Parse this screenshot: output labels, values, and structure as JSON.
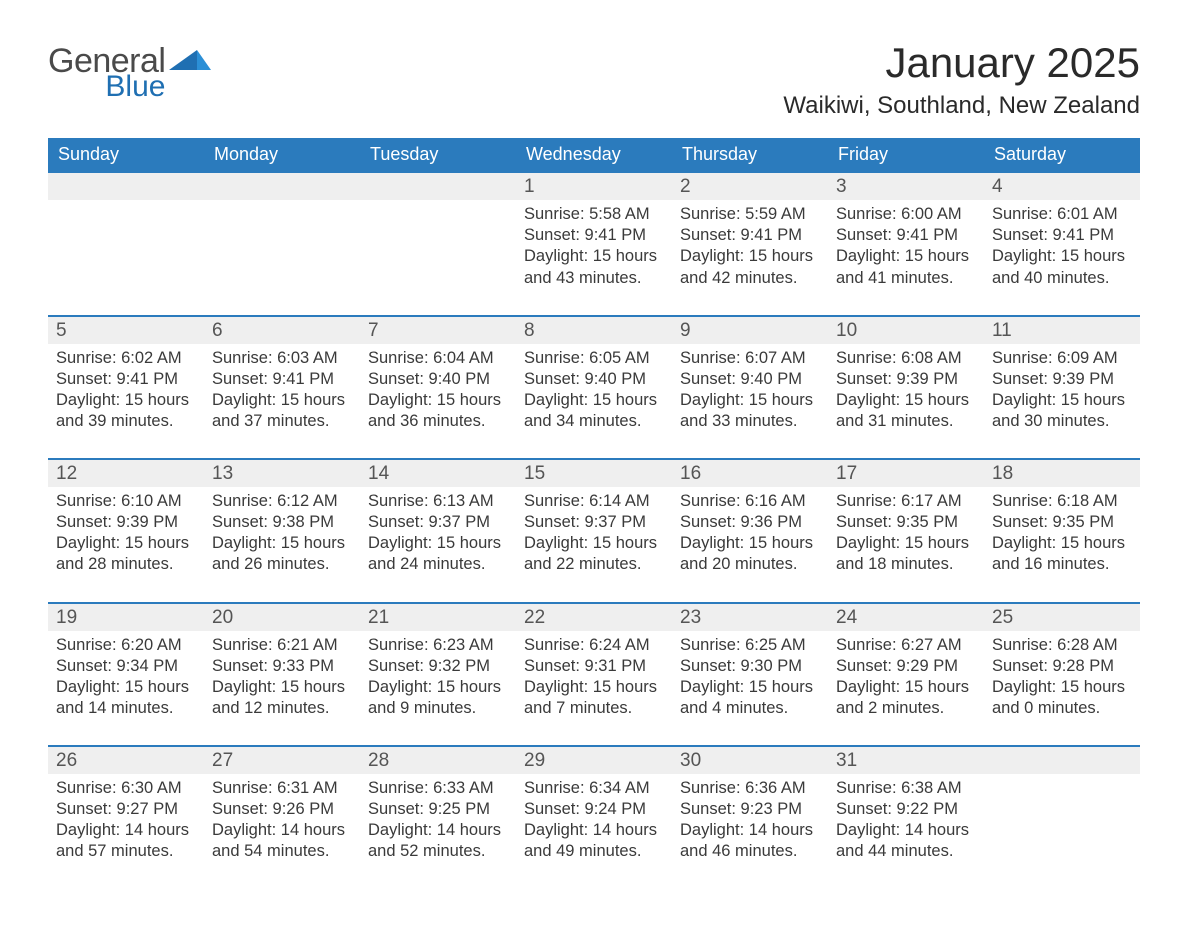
{
  "logo": {
    "general": "General",
    "blue": "Blue"
  },
  "title": "January 2025",
  "location": "Waikiwi, Southland, New Zealand",
  "colors": {
    "header_bg": "#2b7bbd",
    "header_text": "#ffffff",
    "date_bar_bg": "#efefef",
    "date_bar_border": "#2b7bbd",
    "body_text": "#3a3a3a",
    "logo_blue": "#1f6fb2",
    "logo_gray": "#4a4a4a",
    "page_bg": "#ffffff"
  },
  "typography": {
    "title_fontsize": 42,
    "location_fontsize": 24,
    "dow_fontsize": 18,
    "date_fontsize": 19,
    "body_fontsize": 16.5,
    "font_family": "Helvetica Neue, Arial, sans-serif"
  },
  "days_of_week": [
    "Sunday",
    "Monday",
    "Tuesday",
    "Wednesday",
    "Thursday",
    "Friday",
    "Saturday"
  ],
  "weeks": [
    [
      {
        "date": "",
        "sunrise": "",
        "sunset": "",
        "daylight": ""
      },
      {
        "date": "",
        "sunrise": "",
        "sunset": "",
        "daylight": ""
      },
      {
        "date": "",
        "sunrise": "",
        "sunset": "",
        "daylight": ""
      },
      {
        "date": "1",
        "sunrise": "Sunrise: 5:58 AM",
        "sunset": "Sunset: 9:41 PM",
        "daylight": "Daylight: 15 hours and 43 minutes."
      },
      {
        "date": "2",
        "sunrise": "Sunrise: 5:59 AM",
        "sunset": "Sunset: 9:41 PM",
        "daylight": "Daylight: 15 hours and 42 minutes."
      },
      {
        "date": "3",
        "sunrise": "Sunrise: 6:00 AM",
        "sunset": "Sunset: 9:41 PM",
        "daylight": "Daylight: 15 hours and 41 minutes."
      },
      {
        "date": "4",
        "sunrise": "Sunrise: 6:01 AM",
        "sunset": "Sunset: 9:41 PM",
        "daylight": "Daylight: 15 hours and 40 minutes."
      }
    ],
    [
      {
        "date": "5",
        "sunrise": "Sunrise: 6:02 AM",
        "sunset": "Sunset: 9:41 PM",
        "daylight": "Daylight: 15 hours and 39 minutes."
      },
      {
        "date": "6",
        "sunrise": "Sunrise: 6:03 AM",
        "sunset": "Sunset: 9:41 PM",
        "daylight": "Daylight: 15 hours and 37 minutes."
      },
      {
        "date": "7",
        "sunrise": "Sunrise: 6:04 AM",
        "sunset": "Sunset: 9:40 PM",
        "daylight": "Daylight: 15 hours and 36 minutes."
      },
      {
        "date": "8",
        "sunrise": "Sunrise: 6:05 AM",
        "sunset": "Sunset: 9:40 PM",
        "daylight": "Daylight: 15 hours and 34 minutes."
      },
      {
        "date": "9",
        "sunrise": "Sunrise: 6:07 AM",
        "sunset": "Sunset: 9:40 PM",
        "daylight": "Daylight: 15 hours and 33 minutes."
      },
      {
        "date": "10",
        "sunrise": "Sunrise: 6:08 AM",
        "sunset": "Sunset: 9:39 PM",
        "daylight": "Daylight: 15 hours and 31 minutes."
      },
      {
        "date": "11",
        "sunrise": "Sunrise: 6:09 AM",
        "sunset": "Sunset: 9:39 PM",
        "daylight": "Daylight: 15 hours and 30 minutes."
      }
    ],
    [
      {
        "date": "12",
        "sunrise": "Sunrise: 6:10 AM",
        "sunset": "Sunset: 9:39 PM",
        "daylight": "Daylight: 15 hours and 28 minutes."
      },
      {
        "date": "13",
        "sunrise": "Sunrise: 6:12 AM",
        "sunset": "Sunset: 9:38 PM",
        "daylight": "Daylight: 15 hours and 26 minutes."
      },
      {
        "date": "14",
        "sunrise": "Sunrise: 6:13 AM",
        "sunset": "Sunset: 9:37 PM",
        "daylight": "Daylight: 15 hours and 24 minutes."
      },
      {
        "date": "15",
        "sunrise": "Sunrise: 6:14 AM",
        "sunset": "Sunset: 9:37 PM",
        "daylight": "Daylight: 15 hours and 22 minutes."
      },
      {
        "date": "16",
        "sunrise": "Sunrise: 6:16 AM",
        "sunset": "Sunset: 9:36 PM",
        "daylight": "Daylight: 15 hours and 20 minutes."
      },
      {
        "date": "17",
        "sunrise": "Sunrise: 6:17 AM",
        "sunset": "Sunset: 9:35 PM",
        "daylight": "Daylight: 15 hours and 18 minutes."
      },
      {
        "date": "18",
        "sunrise": "Sunrise: 6:18 AM",
        "sunset": "Sunset: 9:35 PM",
        "daylight": "Daylight: 15 hours and 16 minutes."
      }
    ],
    [
      {
        "date": "19",
        "sunrise": "Sunrise: 6:20 AM",
        "sunset": "Sunset: 9:34 PM",
        "daylight": "Daylight: 15 hours and 14 minutes."
      },
      {
        "date": "20",
        "sunrise": "Sunrise: 6:21 AM",
        "sunset": "Sunset: 9:33 PM",
        "daylight": "Daylight: 15 hours and 12 minutes."
      },
      {
        "date": "21",
        "sunrise": "Sunrise: 6:23 AM",
        "sunset": "Sunset: 9:32 PM",
        "daylight": "Daylight: 15 hours and 9 minutes."
      },
      {
        "date": "22",
        "sunrise": "Sunrise: 6:24 AM",
        "sunset": "Sunset: 9:31 PM",
        "daylight": "Daylight: 15 hours and 7 minutes."
      },
      {
        "date": "23",
        "sunrise": "Sunrise: 6:25 AM",
        "sunset": "Sunset: 9:30 PM",
        "daylight": "Daylight: 15 hours and 4 minutes."
      },
      {
        "date": "24",
        "sunrise": "Sunrise: 6:27 AM",
        "sunset": "Sunset: 9:29 PM",
        "daylight": "Daylight: 15 hours and 2 minutes."
      },
      {
        "date": "25",
        "sunrise": "Sunrise: 6:28 AM",
        "sunset": "Sunset: 9:28 PM",
        "daylight": "Daylight: 15 hours and 0 minutes."
      }
    ],
    [
      {
        "date": "26",
        "sunrise": "Sunrise: 6:30 AM",
        "sunset": "Sunset: 9:27 PM",
        "daylight": "Daylight: 14 hours and 57 minutes."
      },
      {
        "date": "27",
        "sunrise": "Sunrise: 6:31 AM",
        "sunset": "Sunset: 9:26 PM",
        "daylight": "Daylight: 14 hours and 54 minutes."
      },
      {
        "date": "28",
        "sunrise": "Sunrise: 6:33 AM",
        "sunset": "Sunset: 9:25 PM",
        "daylight": "Daylight: 14 hours and 52 minutes."
      },
      {
        "date": "29",
        "sunrise": "Sunrise: 6:34 AM",
        "sunset": "Sunset: 9:24 PM",
        "daylight": "Daylight: 14 hours and 49 minutes."
      },
      {
        "date": "30",
        "sunrise": "Sunrise: 6:36 AM",
        "sunset": "Sunset: 9:23 PM",
        "daylight": "Daylight: 14 hours and 46 minutes."
      },
      {
        "date": "31",
        "sunrise": "Sunrise: 6:38 AM",
        "sunset": "Sunset: 9:22 PM",
        "daylight": "Daylight: 14 hours and 44 minutes."
      },
      {
        "date": "",
        "sunrise": "",
        "sunset": "",
        "daylight": ""
      }
    ]
  ]
}
